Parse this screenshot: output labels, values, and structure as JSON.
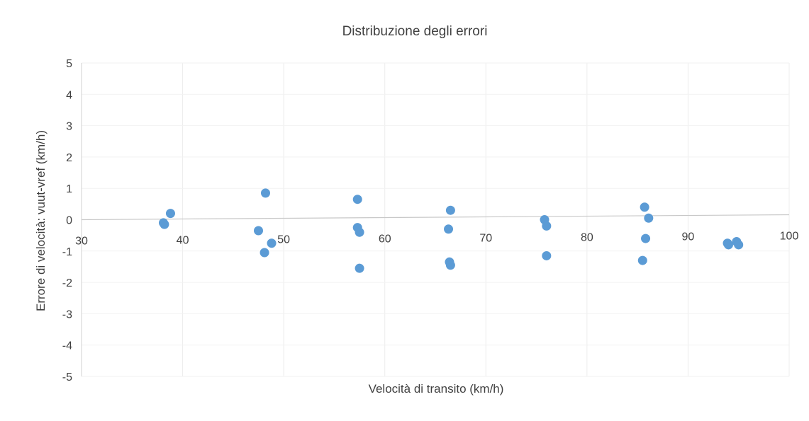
{
  "chart_data": {
    "type": "scatter",
    "title": "Distribuzione degli errori",
    "xlabel": "Velocità di transito (km/h)",
    "ylabel": "Errore di velocità: vuut-vref  (km/h)",
    "xlim": [
      30,
      100
    ],
    "ylim": [
      -5,
      5
    ],
    "xticks": [
      "30",
      "40",
      "50",
      "60",
      "70",
      "80",
      "90",
      "100"
    ],
    "yticks": [
      "5",
      "4",
      "3",
      "2",
      "1",
      "0",
      "-1",
      "-2",
      "-3",
      "-4",
      "-5"
    ],
    "grid": true,
    "legend": "none",
    "point_color": "#5b9bd5",
    "series": [
      {
        "points": [
          {
            "x": 38.1,
            "y": -0.1
          },
          {
            "x": 38.2,
            "y": -0.15
          },
          {
            "x": 38.8,
            "y": 0.2
          },
          {
            "x": 47.5,
            "y": -0.35
          },
          {
            "x": 48.2,
            "y": 0.85
          },
          {
            "x": 48.1,
            "y": -1.05
          },
          {
            "x": 48.8,
            "y": -0.75
          },
          {
            "x": 57.3,
            "y": 0.65
          },
          {
            "x": 57.3,
            "y": -0.25
          },
          {
            "x": 57.5,
            "y": -0.4
          },
          {
            "x": 57.5,
            "y": -1.55
          },
          {
            "x": 66.5,
            "y": 0.3
          },
          {
            "x": 66.3,
            "y": -0.3
          },
          {
            "x": 66.4,
            "y": -1.35
          },
          {
            "x": 66.5,
            "y": -1.45
          },
          {
            "x": 75.8,
            "y": 0.0
          },
          {
            "x": 76.0,
            "y": -0.2
          },
          {
            "x": 76.0,
            "y": -1.15
          },
          {
            "x": 85.7,
            "y": 0.4
          },
          {
            "x": 86.1,
            "y": 0.05
          },
          {
            "x": 85.8,
            "y": -0.6
          },
          {
            "x": 85.5,
            "y": -1.3
          },
          {
            "x": 93.9,
            "y": -0.75
          },
          {
            "x": 94.0,
            "y": -0.8
          },
          {
            "x": 94.8,
            "y": -0.7
          },
          {
            "x": 95.0,
            "y": -0.8
          }
        ]
      }
    ]
  }
}
